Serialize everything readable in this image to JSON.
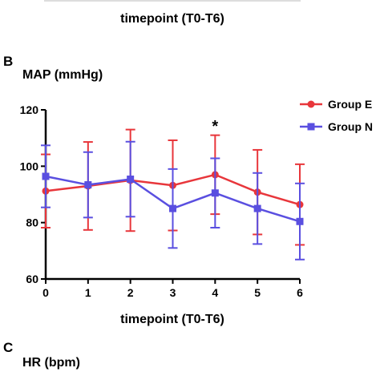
{
  "top_fragment": {
    "xlabel": "timepoint (T0-T6)"
  },
  "panel_b_letter": "B",
  "panel_c_letter": "C",
  "panel_c_ylabel": "HR (bpm)",
  "chart_data": {
    "type": "line",
    "ylabel": "MAP (mmHg)",
    "xlabel": "timepoint (T0-T6)",
    "x": [
      0,
      1,
      2,
      3,
      4,
      5,
      6
    ],
    "xticks": [
      "0",
      "1",
      "2",
      "3",
      "4",
      "5",
      "6"
    ],
    "ylim": [
      60,
      120
    ],
    "yticks": [
      60,
      80,
      100,
      120
    ],
    "grid": false,
    "legend_position": "top-right",
    "annotations": [
      {
        "x": 4,
        "text": "*"
      }
    ],
    "series": [
      {
        "name": "Group E",
        "color": "#e8363b",
        "marker": "circle",
        "values": [
          91.2,
          93.0,
          95.0,
          93.2,
          97.0,
          90.8,
          86.4
        ],
        "error": [
          13.0,
          15.6,
          18.0,
          16.0,
          14.0,
          15.0,
          14.3
        ]
      },
      {
        "name": "Group N",
        "color": "#5a4fe0",
        "marker": "square",
        "values": [
          96.4,
          93.4,
          95.4,
          85.0,
          90.5,
          85.0,
          80.4
        ],
        "error": [
          11.0,
          11.6,
          13.3,
          14.0,
          12.3,
          12.6,
          13.5
        ]
      }
    ]
  }
}
